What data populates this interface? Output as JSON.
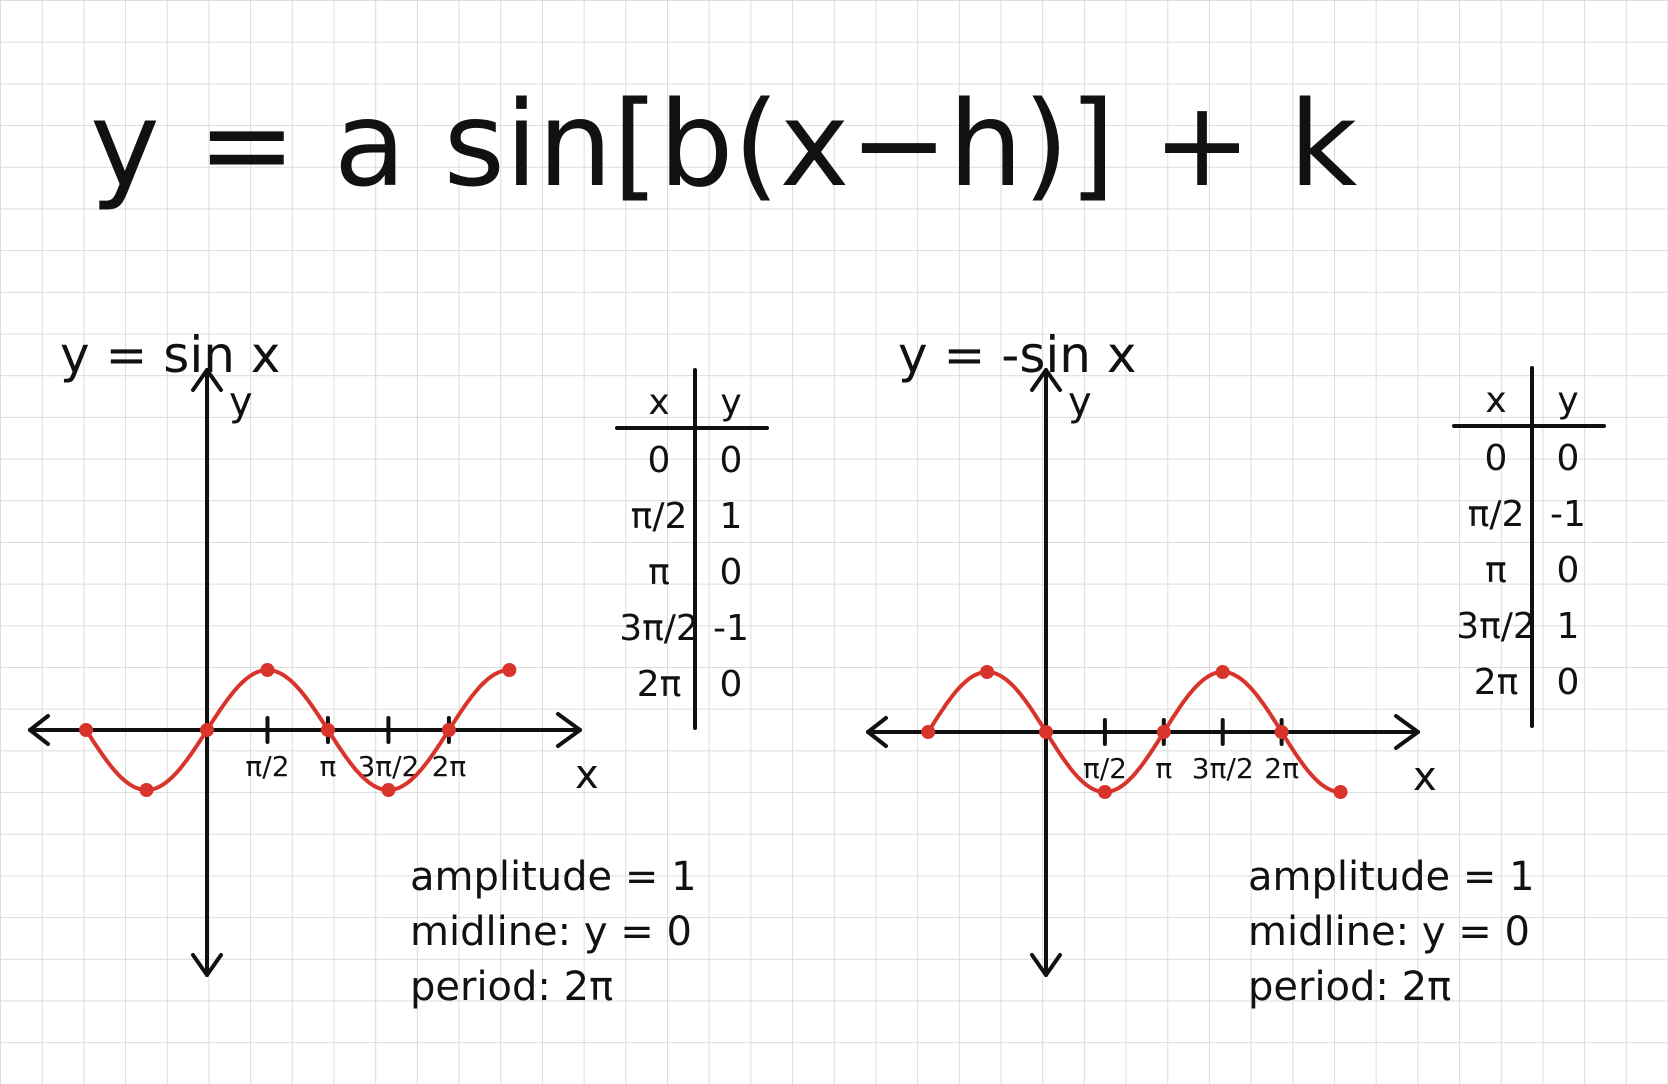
{
  "title": "y = a sin[b(x−h)] + k",
  "colors": {
    "curve": "#d9342b",
    "ink": "#111111",
    "grid": "#dcdcdc"
  },
  "chart_data": [
    {
      "type": "line",
      "title": "y = sin x",
      "xlabel": "x",
      "ylabel": "y",
      "x_tick_labels": [
        "π/2",
        "π",
        "3π/2",
        "2π"
      ],
      "series": [
        {
          "x": [
            -3.1416,
            -1.5708,
            0,
            1.5708,
            3.1416,
            4.7124,
            6.2832,
            7.854
          ],
          "y": [
            0,
            -1,
            0,
            1,
            0,
            -1,
            0,
            1
          ]
        }
      ],
      "table": {
        "headers": [
          "x",
          "y"
        ],
        "rows": [
          [
            "0",
            "0"
          ],
          [
            "π/2",
            "1"
          ],
          [
            "π",
            "0"
          ],
          [
            "3π/2",
            "-1"
          ],
          [
            "2π",
            "0"
          ]
        ]
      },
      "notes": [
        "amplitude = 1",
        "midline: y = 0",
        "period: 2π"
      ]
    },
    {
      "type": "line",
      "title": "y = -sin x",
      "xlabel": "x",
      "ylabel": "y",
      "x_tick_labels": [
        "π/2",
        "π",
        "3π/2",
        "2π"
      ],
      "series": [
        {
          "x": [
            -3.1416,
            -1.5708,
            0,
            1.5708,
            3.1416,
            4.7124,
            6.2832,
            7.854
          ],
          "y": [
            0,
            1,
            0,
            -1,
            0,
            1,
            0,
            -1
          ]
        }
      ],
      "table": {
        "headers": [
          "x",
          "y"
        ],
        "rows": [
          [
            "0",
            "0"
          ],
          [
            "π/2",
            "-1"
          ],
          [
            "π",
            "0"
          ],
          [
            "3π/2",
            "1"
          ],
          [
            "2π",
            "0"
          ]
        ]
      },
      "notes": [
        "amplitude = 1",
        "midline: y = 0",
        "period: 2π"
      ]
    }
  ]
}
